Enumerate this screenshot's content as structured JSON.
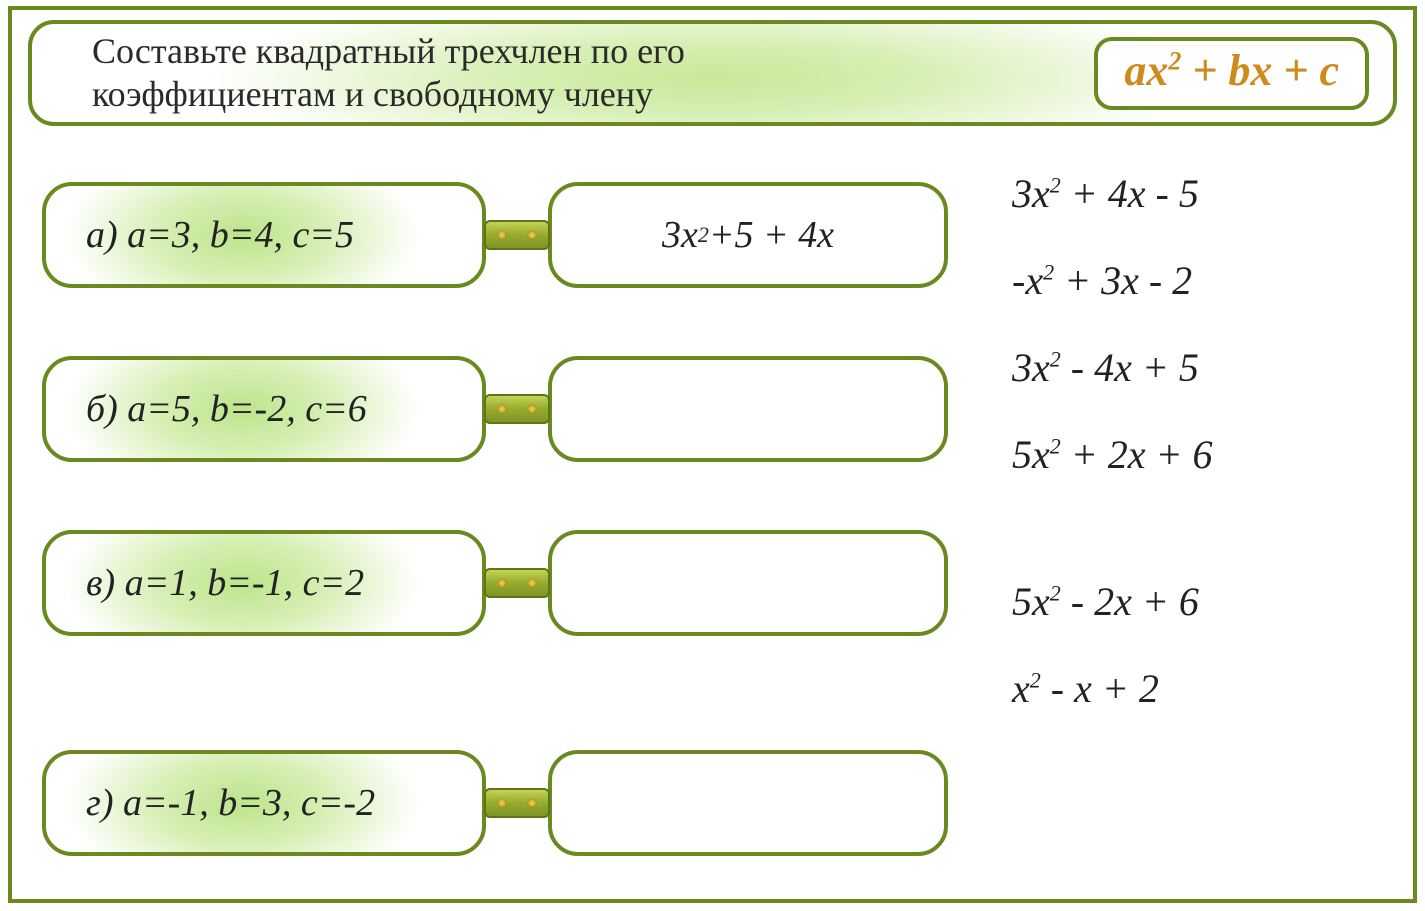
{
  "header": {
    "instruction_line1": "Составьте квадратный трехчлен по его",
    "instruction_line2": "коэффициентам  и свободному члену",
    "formula_html": "ax<sup>2</sup> + bx + c"
  },
  "style": {
    "border_color": "#6a8a1f",
    "glow_inner": "#bde48c",
    "glow_mid": "#d6efb3",
    "background": "#ffffff",
    "formula_text_color": "#cf8a1c",
    "connector_gradient_top": "#c4d256",
    "connector_gradient_mid": "#96ab2e",
    "connector_gradient_bot": "#7f9526",
    "body_font_size_pt": 29,
    "header_font_size_pt": 27,
    "formula_font_size_pt": 33
  },
  "rows": [
    {
      "id": "a",
      "prompt": "а) a=3, b=4, c=5",
      "answer_html": "3x<sup>2</sup> +5 + 4x"
    },
    {
      "id": "b",
      "prompt": "б) a=5, b=-2, c=6",
      "answer_html": ""
    },
    {
      "id": "c",
      "prompt": "в) a=1, b=-1, c=2",
      "answer_html": ""
    },
    {
      "id": "d",
      "prompt": "г) a=-1, b=3, c=-2",
      "answer_html": ""
    }
  ],
  "options": [
    {
      "html": "3x<sup>2</sup> + 4x - 5"
    },
    {
      "html": "-x<sup>2</sup> + 3x - 2"
    },
    {
      "html": "3x<sup>2</sup> - 4x + 5"
    },
    {
      "html": "5x<sup>2</sup> + 2x + 6"
    },
    {
      "gap": true
    },
    {
      "html": "5x<sup>2</sup> - 2x + 6"
    },
    {
      "html": "x<sup>2</sup> - x + 2"
    }
  ]
}
